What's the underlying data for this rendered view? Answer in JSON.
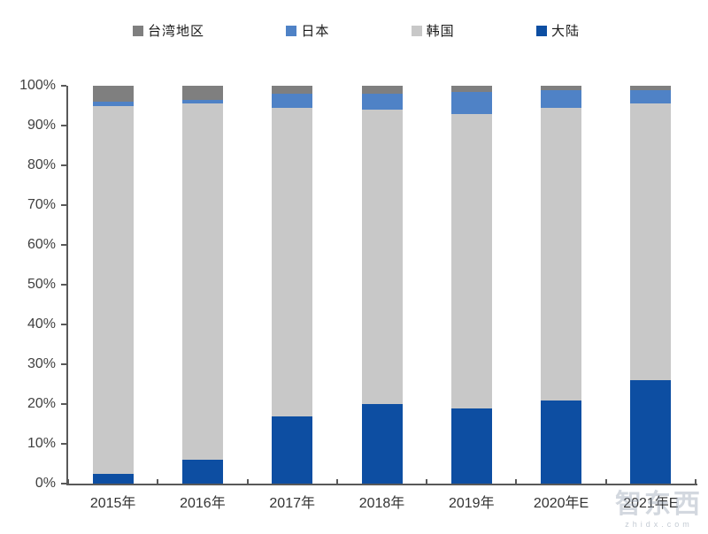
{
  "chart_data": {
    "type": "bar",
    "stacked": true,
    "percent": true,
    "title": "",
    "xlabel": "",
    "ylabel": "",
    "categories": [
      "2015年",
      "2016年",
      "2017年",
      "2018年",
      "2019年",
      "2020年E",
      "2021年E"
    ],
    "series": [
      {
        "name": "大陆",
        "color": "#0D4EA2",
        "values": [
          2.5,
          6.0,
          17.0,
          20.0,
          19.0,
          21.0,
          26.0
        ]
      },
      {
        "name": "韩国",
        "color": "#C8C8C8",
        "values": [
          92.5,
          89.5,
          77.5,
          74.0,
          74.0,
          73.5,
          69.5
        ]
      },
      {
        "name": "日本",
        "color": "#4F82C6",
        "values": [
          1.0,
          1.0,
          3.5,
          4.0,
          5.5,
          4.5,
          3.5
        ]
      },
      {
        "name": "台湾地区",
        "color": "#7F7F7F",
        "values": [
          4.0,
          3.5,
          2.0,
          2.0,
          1.5,
          1.0,
          1.0
        ]
      }
    ],
    "legend": {
      "position": "top",
      "order": [
        "台湾地区",
        "日本",
        "韩国",
        "大陆"
      ]
    },
    "ylim": [
      0,
      100
    ],
    "ytick_step": 10,
    "ytick_labels": [
      "0%",
      "10%",
      "20%",
      "30%",
      "40%",
      "50%",
      "60%",
      "70%",
      "80%",
      "90%",
      "100%"
    ],
    "grid": false
  },
  "watermark": {
    "logo_text": "智东西",
    "domain_text": "zhidx.com"
  }
}
